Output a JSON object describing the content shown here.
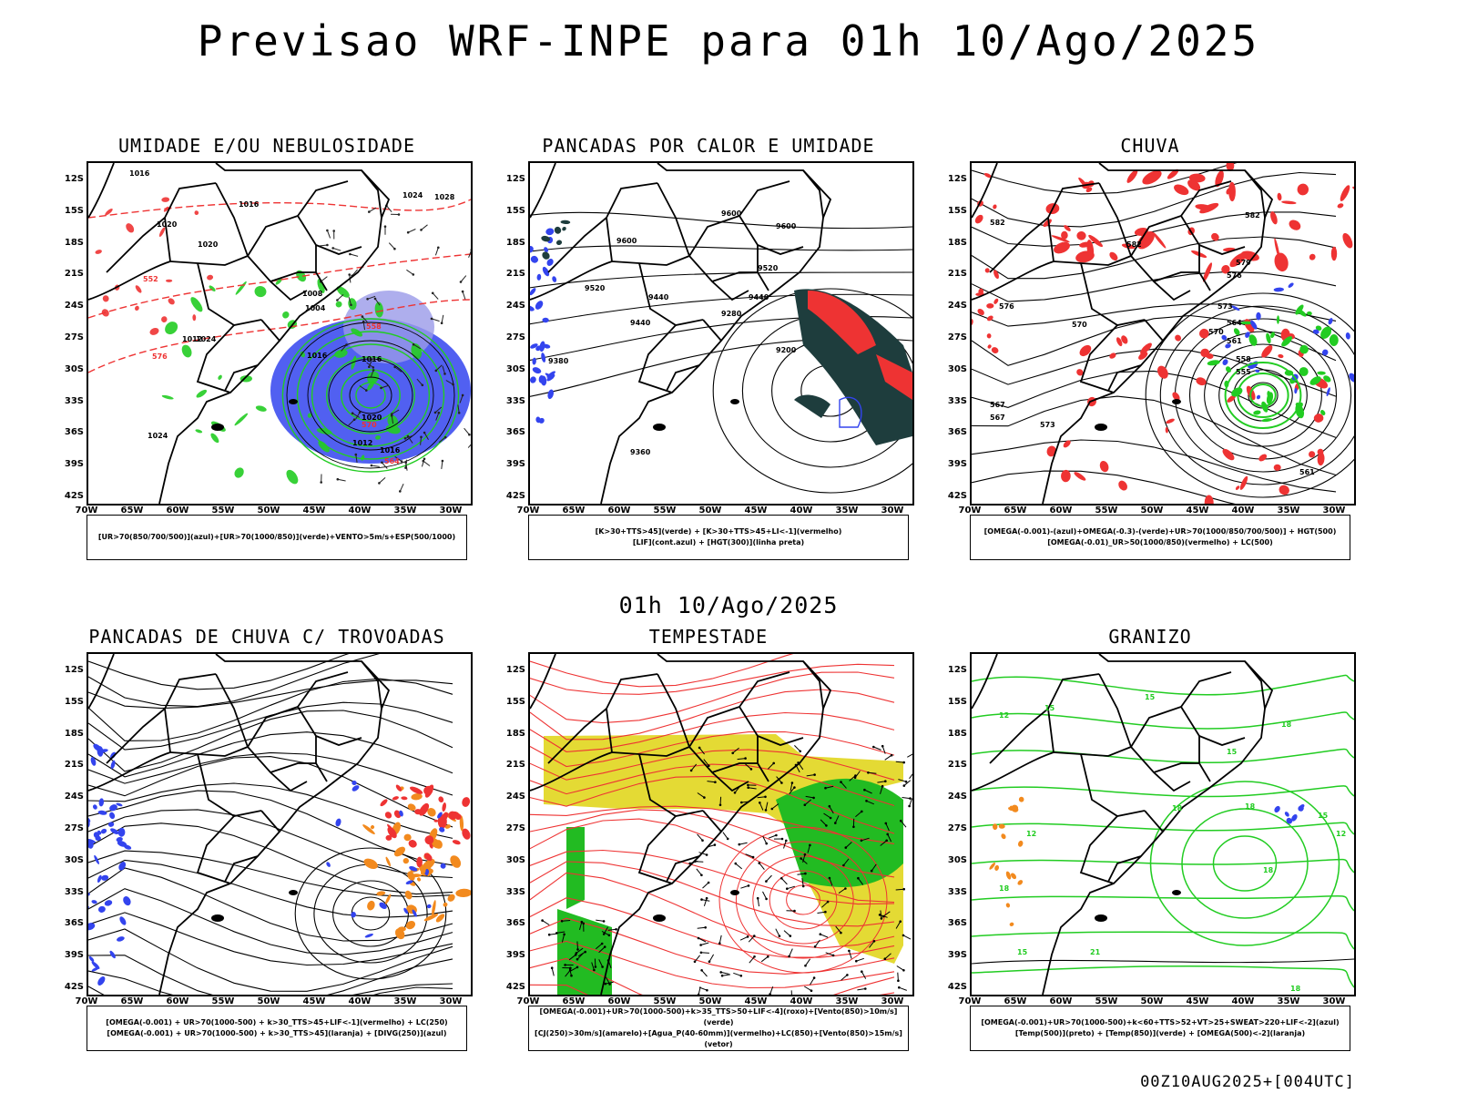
{
  "page": {
    "title": "Previsao WRF-INPE  para 01h 10/Ago/2025",
    "subtitle": "01h 10/Ago/2025",
    "run_stamp": "00Z10AUG2025+[004UTC]"
  },
  "axes": {
    "lat_labels": [
      "12S",
      "15S",
      "18S",
      "21S",
      "24S",
      "27S",
      "30S",
      "33S",
      "36S",
      "39S",
      "42S"
    ],
    "lon_labels": [
      "70W",
      "65W",
      "60W",
      "55W",
      "50W",
      "45W",
      "40W",
      "35W",
      "30W"
    ]
  },
  "colors": {
    "green": "#22cc22",
    "blue": "#3344ee",
    "red": "#ee3333",
    "orange": "#f28a1e",
    "yellow": "#e3d829",
    "darkteal": "#1e3d3d",
    "lavender": "#9a9ae8"
  },
  "panels": [
    {
      "title": "UMIDADE E/OU NEBULOSIDADE",
      "legend": [
        "[UR>70(850/700/500)](azul)+[UR>70(1000/850)](verde)+VENTO>5m/s+ESP(500/1000)"
      ],
      "contour_labels": [
        "1016",
        "1016",
        "1020",
        "1020",
        "1024",
        "1024",
        "1012",
        "1008",
        "1004",
        "1016",
        "1016",
        "1020",
        "1024",
        "1028",
        "1012",
        "1016",
        "570",
        "564",
        "558",
        "552",
        "576"
      ]
    },
    {
      "title": "PANCADAS POR CALOR E UMIDADE",
      "legend": [
        "[K>30+TTS>45](verde) + [K>30+TTS>45+LI<-1](vermelho)",
        "[LIF](cont.azul) + [HGT(300)](linha preta)"
      ],
      "contour_labels": [
        "9600",
        "9600",
        "9600",
        "9520",
        "9440",
        "9440",
        "9380",
        "9280",
        "9200",
        "9360",
        "9520",
        "9440"
      ]
    },
    {
      "title": "CHUVA",
      "legend": [
        "[OMEGA(-0.001)-(azul)+OMEGA(-0.3)-(verde)+UR>70(1000/850/700/500)] + HGT(500)",
        "[OMEGA(-0.01)_UR>50(1000/850)(vermelho) + LC(500)"
      ],
      "contour_labels": [
        "582",
        "582",
        "582",
        "579",
        "576",
        "573",
        "570",
        "567",
        "576",
        "570",
        "573",
        "567",
        "564",
        "561",
        "558",
        "555",
        "561"
      ]
    },
    {
      "title": "PANCADAS DE CHUVA C/ TROVOADAS",
      "legend": [
        "[OMEGA(-0.001) + UR>70(1000-500) + k>30_TTS>45+LIF<-1](vermelho) + LC(250)",
        "[OMEGA(-0.001) + UR>70(1000-500) + k>30_TTS>45](laranja) + [DIVG(250)](azul)"
      ],
      "contour_labels": []
    },
    {
      "title": "TEMPESTADE",
      "legend": [
        "[OMEGA(-0.001)+UR>70(1000-500)+k>35_TTS>50+LIF<-4](roxo)+[Vento(850)>10m/s](verde)",
        "[CJ(250)>30m/s](amarelo)+[Agua_P(40-60mm)](vermelho)+LC(850)+[Vento(850)>15m/s](vetor)"
      ],
      "contour_labels": []
    },
    {
      "title": "GRANIZO",
      "legend": [
        "[OMEGA(-0.001)+UR>70(1000-500)+k<60+TTS>52+VT>25+SWEAT>220+LIF<-2](azul)",
        "[Temp(500)](preto) + [Temp(850)](verde) + [OMEGA(500)<-2](laranja)"
      ],
      "contour_labels": [
        "12",
        "15",
        "15",
        "18",
        "18",
        "18",
        "15",
        "12",
        "18",
        "18",
        "21",
        "15",
        "18",
        "15",
        "12"
      ]
    }
  ]
}
